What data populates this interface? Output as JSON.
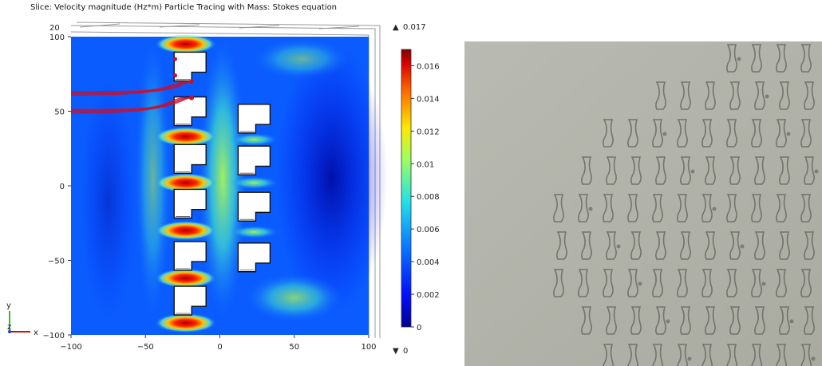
{
  "chart_data": {
    "type": "heatmap",
    "title": "Slice: Velocity magnitude (Hz*m) Particle Tracing with Mass: Stokes equation",
    "x_ticks": [
      "−100",
      "−50",
      "0",
      "50",
      "100"
    ],
    "y_ticks": [
      "100",
      "50",
      "0",
      "−50",
      "−100"
    ],
    "xlim": [
      -100,
      100
    ],
    "ylim": [
      -100,
      100
    ],
    "top_axis_label": "20",
    "colorbar": {
      "max_label": "0.017",
      "min_label": "0",
      "ticks": [
        "0.016",
        "0.014",
        "0.012",
        "0.01",
        "0.008",
        "0.006",
        "0.004",
        "0.002",
        "0"
      ],
      "range": [
        0,
        0.017
      ],
      "colormap": "rainbow"
    },
    "triad": {
      "x_label": "x",
      "y_label": "y",
      "z_label": "z"
    },
    "obstacles": {
      "left_column_y": [
        80,
        50,
        18,
        -12,
        -47,
        -77
      ],
      "right_column_y": [
        45,
        17,
        -14,
        -48
      ],
      "left_column_x": -20,
      "right_column_x": 23
    },
    "particle_paths": [
      {
        "start": [
          -100,
          62
        ],
        "end": [
          -19,
          70
        ]
      },
      {
        "start": [
          -100,
          50
        ],
        "end": [
          -19,
          59
        ]
      }
    ]
  },
  "photo": {
    "description_colors": {
      "background": "#b4b5ac",
      "pattern": "#5f6258"
    }
  },
  "colors": {
    "path": "#c8102e",
    "low": "#00008f",
    "mid": "#0a7fff",
    "high": "#7f0000"
  }
}
